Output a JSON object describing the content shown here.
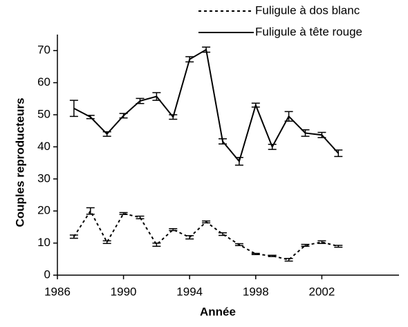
{
  "chart_data": {
    "type": "line",
    "x_label": "Année",
    "y_label": "Couples reproducteurs",
    "x": [
      1987,
      1988,
      1989,
      1990,
      1991,
      1992,
      1993,
      1994,
      1995,
      1996,
      1997,
      1998,
      1999,
      2000,
      2001,
      2002,
      2003
    ],
    "series": [
      {
        "name": "Fuligule à dos blanc",
        "color": "#000000",
        "style": "dotted",
        "values": [
          12,
          20,
          10.3,
          19.2,
          18,
          9.5,
          14.2,
          11.8,
          16.6,
          12.8,
          9.5,
          6.6,
          6,
          4.8,
          9.3,
          10.3,
          9
        ],
        "errors": [
          0.5,
          1,
          0.4,
          0.3,
          0.4,
          0.5,
          0.3,
          0.5,
          0.3,
          0.4,
          0.3,
          0.2,
          0.2,
          0.4,
          0.3,
          0.4,
          0.3
        ]
      },
      {
        "name": "Fuligule à tête rouge",
        "color": "#000000",
        "style": "solid",
        "values": [
          52,
          49.3,
          44,
          49.7,
          54.3,
          55.7,
          49.3,
          67.3,
          70.3,
          41.7,
          35.5,
          53,
          40,
          49.5,
          44.3,
          43.7,
          38
        ],
        "errors": [
          2.5,
          0.5,
          0.7,
          0.7,
          0.8,
          1.2,
          0.7,
          0.8,
          0.8,
          0.8,
          1.2,
          0.6,
          0.8,
          1.5,
          1,
          0.8,
          1
        ]
      }
    ],
    "xlim": [
      1986,
      2006
    ],
    "xticks": [
      1986,
      1990,
      1994,
      1998,
      2002
    ],
    "ylim": [
      0,
      75
    ],
    "yticks": [
      0,
      10,
      20,
      30,
      40,
      50,
      60,
      70
    ],
    "legend": "top-right"
  }
}
